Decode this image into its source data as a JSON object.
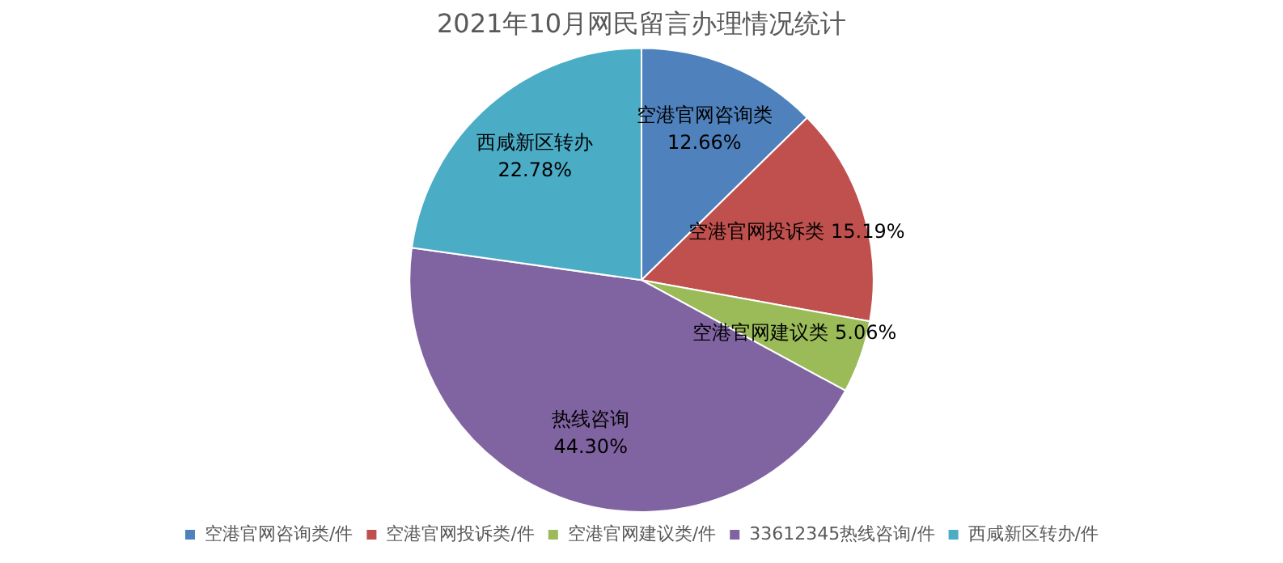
{
  "chart_data": {
    "type": "pie",
    "title": "2021年10月网民留言办理情况统计",
    "categories": [
      "空港官网咨询类/件",
      "空港官网投诉类/件",
      "空港官网建议类/件",
      "33612345热线咨询/件",
      "西咸新区转办/件"
    ],
    "values": [
      12.66,
      15.19,
      5.06,
      44.3,
      22.78
    ],
    "colors": [
      "#4f81bd",
      "#c0504d",
      "#9bbb59",
      "#8064a2",
      "#4bacc6"
    ],
    "value_labels": [
      "空港官网咨询类\n12.66%",
      "空港官网投诉类 15.19%",
      "空港官网建议类 5.06%",
      "热线咨询\n44.30%",
      "西咸新区转办\n22.78%"
    ],
    "legend": "bottom"
  }
}
